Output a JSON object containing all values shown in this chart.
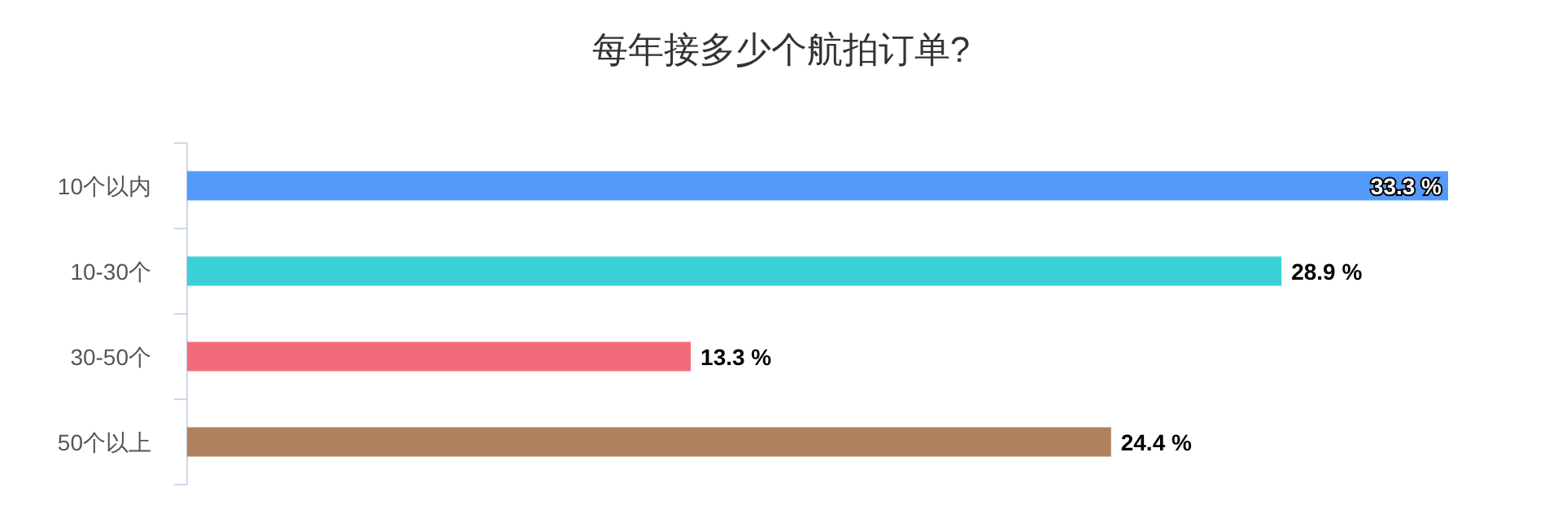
{
  "chart_data": {
    "type": "bar",
    "orientation": "horizontal",
    "title": "每年接多少个航拍订单?",
    "categories": [
      "10个以内",
      "10-30个",
      "30-50个",
      "50个以上"
    ],
    "values": [
      33.3,
      28.9,
      13.3,
      24.4
    ],
    "colors": [
      "#5599fb",
      "#3bd1d9",
      "#f26b7b",
      "#b0815e"
    ],
    "value_labels": [
      "33.3 %",
      "28.9 %",
      "13.3 %",
      "24.4 %"
    ]
  }
}
